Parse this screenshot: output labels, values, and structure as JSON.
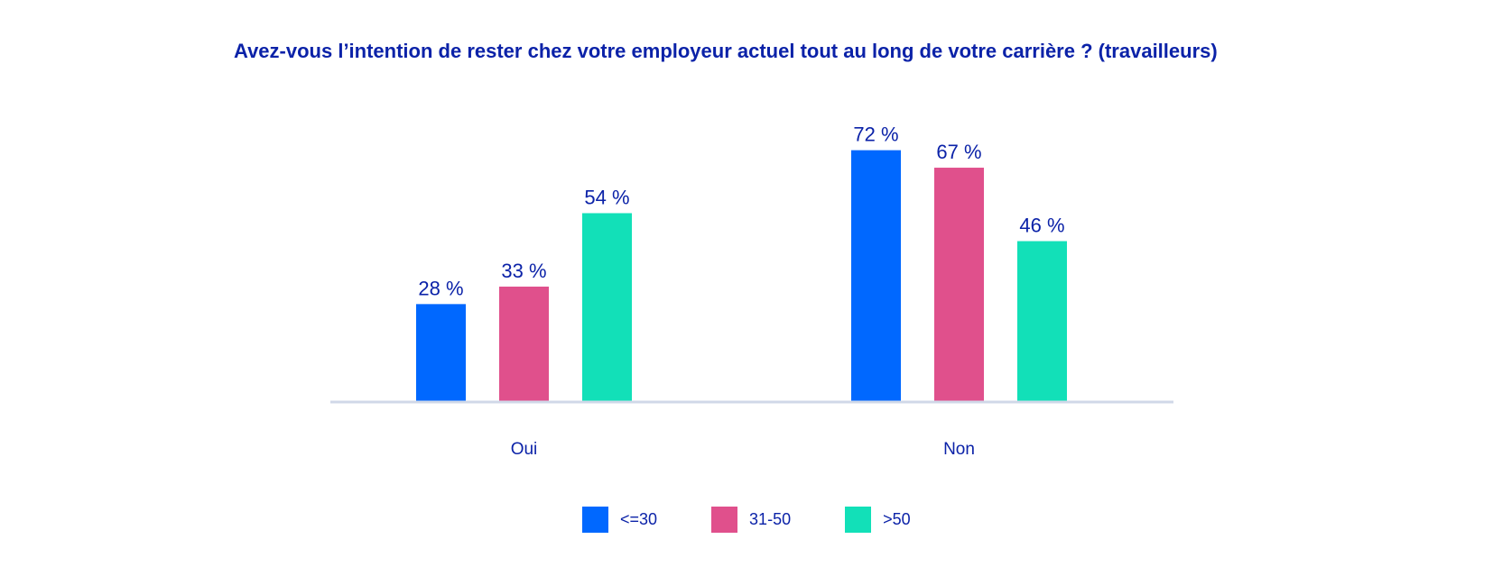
{
  "chart_data": {
    "type": "bar",
    "title": "Avez-vous l’intention de rester chez votre employeur actuel tout au long de votre carrière ? (travailleurs)",
    "categories": [
      "Oui",
      "Non"
    ],
    "series": [
      {
        "name": "<=30",
        "values": [
          28,
          72
        ],
        "color": "#0068ff"
      },
      {
        "name": "31-50",
        "values": [
          33,
          67
        ],
        "color": "#e0508c"
      },
      {
        "name": ">50",
        "values": [
          54,
          46
        ],
        "color": "#12e0b8"
      }
    ],
    "data_labels": [
      [
        "28 %",
        "72 %"
      ],
      [
        "33 %",
        "67 %"
      ],
      [
        "54 %",
        "46 %"
      ]
    ],
    "xlabel": "",
    "ylabel": "",
    "ylim": [
      0,
      100
    ],
    "grid": false,
    "legend_position": "bottom-center",
    "colors": {
      "text": "#0b22a8",
      "baseline": "#d0d8e8"
    }
  }
}
